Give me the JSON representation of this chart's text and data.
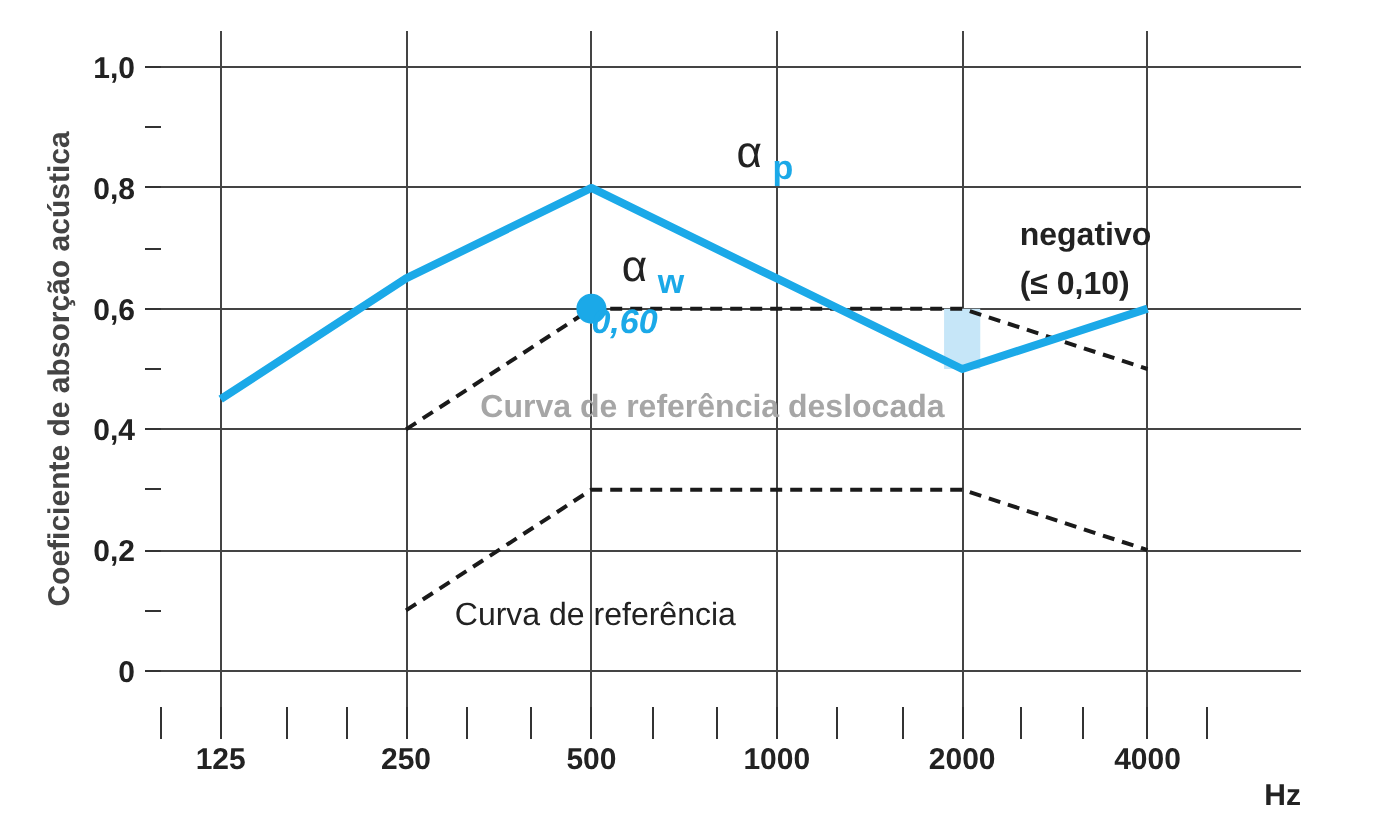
{
  "chart_data": {
    "type": "line",
    "ylabel": "Coeficiente de absorção acústica",
    "xlabel": "Hz",
    "log": "x",
    "grid": true,
    "xlim": [
      100,
      7100
    ],
    "ylim": [
      -0.06,
      1.06
    ],
    "xticks": [
      {
        "value": 100,
        "label": null
      },
      125,
      {
        "value": 160,
        "label": null
      },
      {
        "value": 200,
        "label": null
      },
      250,
      {
        "value": 315,
        "label": null
      },
      {
        "value": 400,
        "label": null
      },
      500,
      {
        "value": 630,
        "label": null
      },
      {
        "value": 800,
        "label": null
      },
      1000,
      {
        "value": 1250,
        "label": null
      },
      {
        "value": 1600,
        "label": null
      },
      2000,
      {
        "value": 2500,
        "label": null
      },
      {
        "value": 3150,
        "label": null
      },
      4000,
      {
        "value": 5000,
        "label": null
      }
    ],
    "yticks": [
      {
        "value": 0,
        "label": "0"
      },
      {
        "value": 0.1,
        "label": null
      },
      {
        "value": 0.2,
        "label": "0,2"
      },
      {
        "value": 0.3,
        "label": null
      },
      {
        "value": 0.4,
        "label": "0,4"
      },
      {
        "value": 0.5,
        "label": null
      },
      {
        "value": 0.6,
        "label": "0,6"
      },
      {
        "value": 0.7,
        "label": null
      },
      {
        "value": 0.8,
        "label": "0,8"
      },
      {
        "value": 0.9,
        "label": null
      },
      {
        "value": 1.0,
        "label": "1,0"
      }
    ],
    "series": [
      {
        "type": "bar",
        "x": [
          2000
        ],
        "base": [
          0.5
        ],
        "values": [
          0.1
        ],
        "color": "#c6e6f8"
      },
      {
        "x": [
          250,
          500,
          1000,
          2000,
          4000
        ],
        "values": [
          0.4,
          0.6,
          0.6,
          0.6,
          0.5
        ],
        "color": "#1a1a1a",
        "line_style": "dashed"
      },
      {
        "x": [
          250,
          500,
          1000,
          2000,
          4000
        ],
        "values": [
          0.1,
          0.3,
          0.3,
          0.3,
          0.2
        ],
        "color": "#1a1a1a",
        "line_style": "dashed"
      },
      {
        "x": [
          125,
          250,
          500,
          1000,
          2000,
          4000
        ],
        "values": [
          0.45,
          0.65,
          0.8,
          0.65,
          0.5,
          0.6
        ],
        "color": "#1ba9e8",
        "line_style": "solid"
      },
      {
        "type": "scatter",
        "x": [
          500
        ],
        "values": [
          0.6
        ],
        "color": "#1ba9e8",
        "marker": "circle"
      }
    ],
    "annotations": [
      "α$_{p}$",
      "α$_{w}$",
      {
        "text": "0,60",
        "x": 500,
        "y": 0.6
      },
      "negativo",
      "(≤ 0,10)",
      "Curva de referência deslocada",
      "Curva de referência"
    ]
  }
}
